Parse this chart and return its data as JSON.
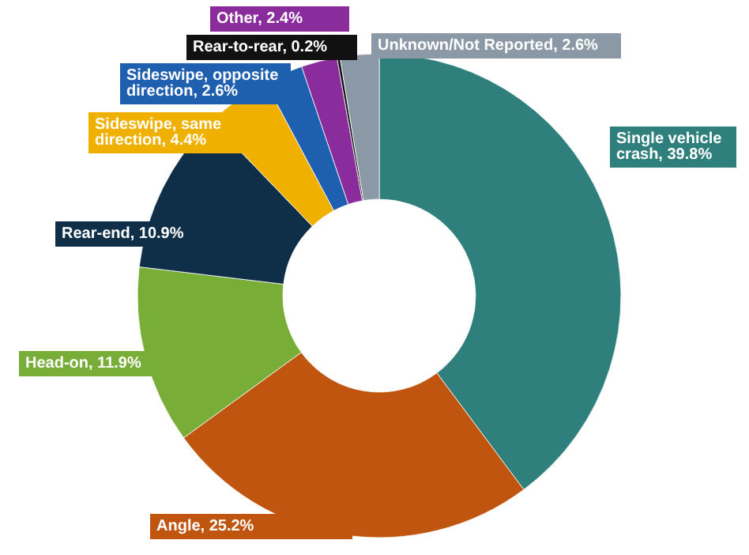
{
  "chart_data": {
    "type": "donut",
    "categories": [
      "Single vehicle crash",
      "Angle",
      "Head-on",
      "Rear-end",
      "Sideswipe, same direction",
      "Sideswipe, opposite direction",
      "Other",
      "Rear-to-rear",
      "Unknown/Not Reported"
    ],
    "values": [
      39.8,
      25.2,
      11.9,
      10.9,
      4.4,
      2.6,
      2.4,
      0.2,
      2.6
    ],
    "value_labels": [
      "39.8%",
      "25.2%",
      "11.9%",
      "10.9%",
      "4.4%",
      "2.6%",
      "2.4%",
      "0.2%",
      "2.6%"
    ],
    "colors": [
      "#2f7f7c",
      "#c0550f",
      "#78ad38",
      "#0f2e47",
      "#f0b000",
      "#1f5fb0",
      "#8a2c9c",
      "#111111",
      "#8b98a5"
    ],
    "legend": false
  }
}
